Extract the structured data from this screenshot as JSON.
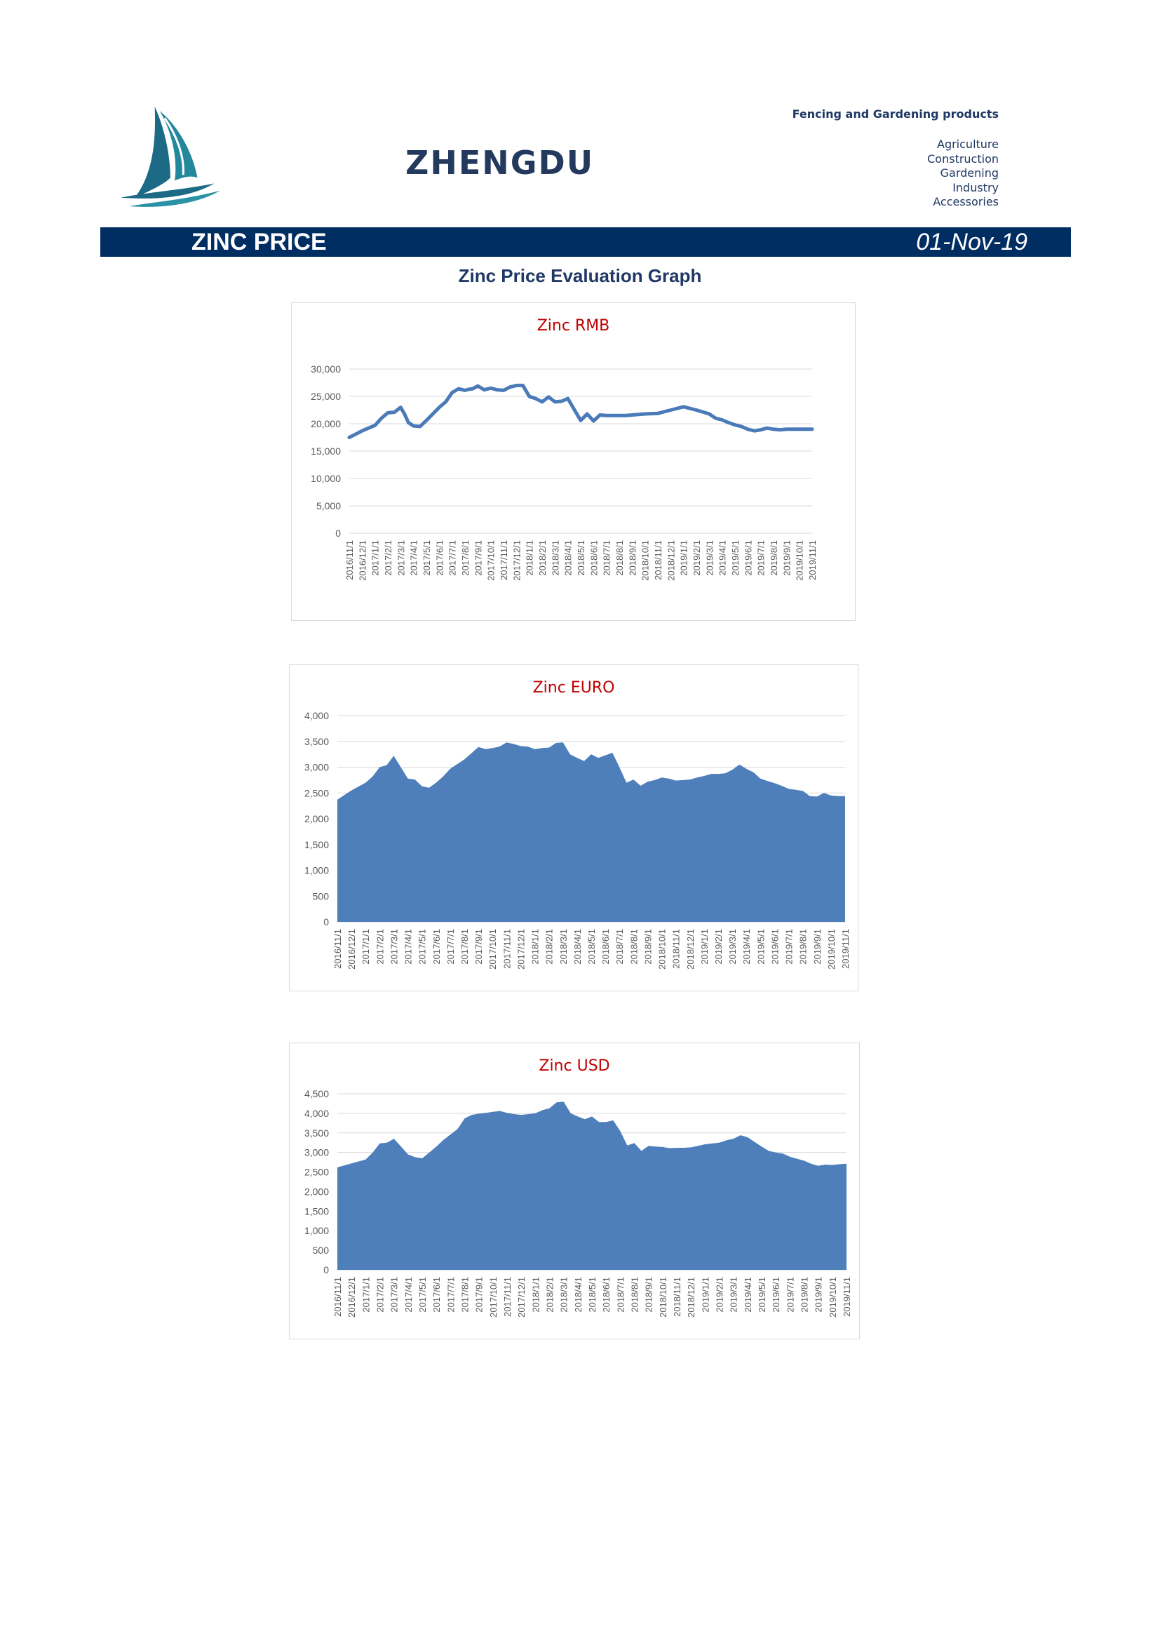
{
  "header": {
    "brand": "ZHENGDU",
    "tagline": "Fencing and Gardening products",
    "categories": [
      "Agriculture",
      "Construction",
      "Gardening",
      "Industry",
      "Accessories"
    ],
    "banner_title": "ZINC PRICE",
    "banner_date": "01-Nov-19",
    "colors": {
      "banner": "#002d62",
      "brand": "#23395d",
      "chart_title": "#c00000",
      "series": "#4e7fbb",
      "line": "#4a7ab8"
    }
  },
  "section_title": "Zinc Price Evaluation Graph",
  "chart_data": [
    {
      "type": "line",
      "title": "Zinc RMB",
      "xlabel": "",
      "ylabel": "",
      "ylim": [
        0,
        30000
      ],
      "yticks": [
        0,
        5000,
        10000,
        15000,
        20000,
        25000,
        30000
      ],
      "grid": true,
      "x_tick_labels": [
        "2016/11/1",
        "2016/12/1",
        "2017/1/1",
        "2017/2/1",
        "2017/3/1",
        "2017/4/1",
        "2017/5/1",
        "2017/6/1",
        "2017/7/1",
        "2017/8/1",
        "2017/9/1",
        "2017/10/1",
        "2017/11/1",
        "2017/12/1",
        "2018/1/1",
        "2018/2/1",
        "2018/3/1",
        "2018/4/1",
        "2018/5/1",
        "2018/6/1",
        "2018/7/1",
        "2018/8/1",
        "2018/9/1",
        "2018/10/1",
        "2018/11/1",
        "2018/12/1",
        "2019/1/1",
        "2019/2/1",
        "2019/3/1",
        "2019/4/1",
        "2019/5/1",
        "2019/6/1",
        "2019/7/1",
        "2019/8/1",
        "2019/9/1",
        "2019/10/1",
        "2019/11/1"
      ],
      "series": [
        {
          "x": [
            0,
            0.5,
            1,
            1.5,
            2,
            2.5,
            3,
            3.5,
            4,
            4.3,
            4.6,
            5,
            5.5,
            6,
            6.5,
            7,
            7.5,
            8,
            8.5,
            9,
            9.3,
            9.6,
            10,
            10.5,
            11,
            11.5,
            12,
            12.5,
            13,
            13.5,
            14,
            14.5,
            15,
            15.5,
            16,
            16.5,
            17,
            17.5,
            18,
            18.5,
            19,
            19.5,
            20,
            20.5,
            21,
            21.5,
            22,
            23,
            24,
            25,
            26,
            27,
            28,
            28.5,
            29,
            29.5,
            30,
            30.5,
            31,
            31.5,
            32,
            32.5,
            33,
            33.5,
            34,
            34.5,
            35,
            35.5,
            36
          ],
          "values": [
            17500,
            18100,
            18700,
            19200,
            19700,
            21000,
            22000,
            22100,
            23000,
            21800,
            20200,
            19600,
            19500,
            20600,
            21800,
            23000,
            24000,
            25700,
            26400,
            26100,
            26300,
            26400,
            26900,
            26200,
            26500,
            26200,
            26100,
            26700,
            27000,
            27000,
            25000,
            24600,
            24000,
            24900,
            24000,
            24100,
            24600,
            22600,
            20600,
            21800,
            20500,
            21600,
            21500,
            21500,
            21500,
            21500,
            21600,
            21800,
            21900,
            22500,
            23100,
            22500,
            21800,
            21000,
            20700,
            20200,
            19800,
            19500,
            19000,
            18700,
            18900,
            19200,
            19000,
            18900,
            19000,
            19000,
            19000,
            19000,
            19000
          ]
        }
      ]
    },
    {
      "type": "area",
      "title": "Zinc EURO",
      "xlabel": "",
      "ylabel": "",
      "ylim": [
        0,
        4000
      ],
      "yticks": [
        0,
        500,
        1000,
        1500,
        2000,
        2500,
        3000,
        3500,
        4000
      ],
      "grid": true,
      "x_tick_labels": [
        "2016/11/1",
        "2016/12/1",
        "2017/1/1",
        "2017/2/1",
        "2017/3/1",
        "2017/4/1",
        "2017/5/1",
        "2017/6/1",
        "2017/7/1",
        "2017/8/1",
        "2017/9/1",
        "2017/10/1",
        "2017/11/1",
        "2017/12/1",
        "2018/1/1",
        "2018/2/1",
        "2018/3/1",
        "2018/4/1",
        "2018/5/1",
        "2018/6/1",
        "2018/7/1",
        "2018/8/1",
        "2018/9/1",
        "2018/10/1",
        "2018/11/1",
        "2018/12/1",
        "2019/1/1",
        "2019/2/1",
        "2019/3/1",
        "2019/4/1",
        "2019/5/1",
        "2019/6/1",
        "2019/7/1",
        "2019/8/1",
        "2019/9/1",
        "2019/10/1",
        "2019/11/1"
      ],
      "series": [
        {
          "x": [
            0,
            1,
            2,
            2.5,
            3,
            3.5,
            4,
            4.5,
            5,
            5.5,
            6,
            6.5,
            7,
            7.5,
            8,
            8.5,
            9,
            9.5,
            10,
            10.5,
            11,
            11.5,
            12,
            12.5,
            13,
            13.5,
            14,
            14.5,
            15,
            15.5,
            16,
            16.5,
            17,
            17.5,
            18,
            18.5,
            19,
            19.5,
            20,
            20.5,
            21,
            21.5,
            22,
            22.5,
            23,
            23.5,
            24,
            24.5,
            25,
            25.5,
            26,
            26.5,
            27,
            27.5,
            28,
            28.5,
            29,
            29.5,
            30,
            30.5,
            31,
            31.5,
            32,
            32.5,
            33,
            33.5,
            34,
            34.5,
            35,
            35.5,
            36
          ],
          "values": [
            2370,
            2550,
            2700,
            2820,
            3000,
            3040,
            3220,
            3000,
            2780,
            2760,
            2630,
            2600,
            2700,
            2820,
            2970,
            3060,
            3150,
            3270,
            3390,
            3350,
            3370,
            3400,
            3480,
            3450,
            3410,
            3400,
            3350,
            3370,
            3380,
            3470,
            3480,
            3250,
            3180,
            3120,
            3250,
            3180,
            3230,
            3280,
            3000,
            2700,
            2760,
            2640,
            2720,
            2750,
            2800,
            2780,
            2740,
            2750,
            2760,
            2800,
            2830,
            2870,
            2870,
            2880,
            2950,
            3050,
            2970,
            2900,
            2780,
            2730,
            2690,
            2640,
            2580,
            2560,
            2540,
            2440,
            2430,
            2500,
            2450,
            2440,
            2440
          ]
        }
      ]
    },
    {
      "type": "area",
      "title": "Zinc USD",
      "xlabel": "",
      "ylabel": "",
      "ylim": [
        0,
        4500
      ],
      "yticks": [
        0,
        500,
        1000,
        1500,
        2000,
        2500,
        3000,
        3500,
        4000,
        4500
      ],
      "grid": true,
      "x_tick_labels": [
        "2016/11/1",
        "2016/12/1",
        "2017/1/1",
        "2017/2/1",
        "2017/3/1",
        "2017/4/1",
        "2017/5/1",
        "2017/6/1",
        "2017/7/1",
        "2017/8/1",
        "2017/9/1",
        "2017/10/1",
        "2017/11/1",
        "2017/12/1",
        "2018/1/1",
        "2018/2/1",
        "2018/3/1",
        "2018/4/1",
        "2018/5/1",
        "2018/6/1",
        "2018/7/1",
        "2018/8/1",
        "2018/9/1",
        "2018/10/1",
        "2018/11/1",
        "2018/12/1",
        "2019/1/1",
        "2019/2/1",
        "2019/3/1",
        "2019/4/1",
        "2019/5/1",
        "2019/6/1",
        "2019/7/1",
        "2019/8/1",
        "2019/9/1",
        "2019/10/1",
        "2019/11/1"
      ],
      "series": [
        {
          "x": [
            0,
            1,
            2,
            2.5,
            3,
            3.5,
            4,
            4.5,
            5,
            5.5,
            6,
            6.5,
            7,
            7.5,
            8,
            8.5,
            9,
            9.5,
            10,
            10.5,
            11,
            11.5,
            12,
            12.5,
            13,
            13.5,
            14,
            14.5,
            15,
            15.5,
            16,
            16.5,
            17,
            17.5,
            18,
            18.5,
            19,
            19.5,
            20,
            20.5,
            21,
            21.5,
            22,
            22.5,
            23,
            23.5,
            24,
            24.5,
            25,
            25.5,
            26,
            26.5,
            27,
            27.5,
            28,
            28.5,
            29,
            29.5,
            30,
            30.5,
            31,
            31.5,
            32,
            32.5,
            33,
            33.5,
            34,
            34.5,
            35,
            35.5,
            36
          ],
          "values": [
            2620,
            2720,
            2820,
            3000,
            3230,
            3250,
            3350,
            3150,
            2950,
            2880,
            2850,
            3000,
            3150,
            3320,
            3460,
            3600,
            3870,
            3960,
            3990,
            4010,
            4040,
            4060,
            4010,
            3980,
            3960,
            3980,
            4000,
            4080,
            4130,
            4280,
            4300,
            4000,
            3920,
            3850,
            3920,
            3780,
            3780,
            3820,
            3550,
            3180,
            3240,
            3040,
            3170,
            3150,
            3140,
            3110,
            3120,
            3120,
            3130,
            3170,
            3210,
            3230,
            3250,
            3310,
            3350,
            3440,
            3390,
            3270,
            3150,
            3040,
            3000,
            2970,
            2890,
            2840,
            2790,
            2710,
            2660,
            2690,
            2680,
            2700,
            2710
          ]
        }
      ]
    }
  ]
}
